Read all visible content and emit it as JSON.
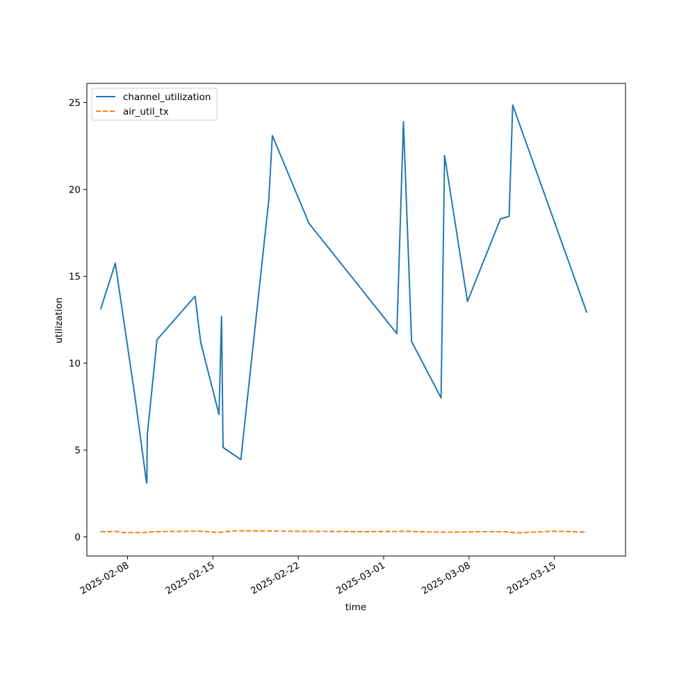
{
  "chart_data": {
    "type": "line",
    "xlabel": "time",
    "ylabel": "utilization",
    "xlim": [
      "2025-02-04T16:00",
      "2025-03-20T20:00"
    ],
    "ylim": [
      -1.1,
      26.1
    ],
    "grid": false,
    "legend_position": "top-left",
    "x_ticks": [
      "2025-02-08",
      "2025-02-15",
      "2025-02-22",
      "2025-03-01",
      "2025-03-08",
      "2025-03-15"
    ],
    "y_ticks": [
      0,
      5,
      10,
      15,
      20,
      25
    ],
    "series": [
      {
        "name": "channel_utilization",
        "color": "#1f77b4",
        "style": "solid",
        "points": [
          [
            "2025-02-05T19:00",
            13.1
          ],
          [
            "2025-02-07T00:00",
            15.75
          ],
          [
            "2025-02-08T15:00",
            8.0
          ],
          [
            "2025-02-09T13:00",
            3.2
          ],
          [
            "2025-02-09T14:00",
            3.1
          ],
          [
            "2025-02-09T15:00",
            5.9
          ],
          [
            "2025-02-10T10:00",
            11.35
          ],
          [
            "2025-02-13T13:00",
            13.85
          ],
          [
            "2025-02-14T00:00",
            11.2
          ],
          [
            "2025-02-15T12:00",
            7.05
          ],
          [
            "2025-02-15T17:00",
            12.7
          ],
          [
            "2025-02-15T20:00",
            5.15
          ],
          [
            "2025-02-17T07:00",
            4.45
          ],
          [
            "2025-02-19T14:00",
            19.4
          ],
          [
            "2025-02-19T21:00",
            23.1
          ],
          [
            "2025-02-22T21:00",
            18.05
          ],
          [
            "2025-03-02T02:00",
            11.7
          ],
          [
            "2025-03-02T15:00",
            23.9
          ],
          [
            "2025-03-03T07:00",
            11.25
          ],
          [
            "2025-03-05T17:00",
            8.0
          ],
          [
            "2025-03-06T00:00",
            21.95
          ],
          [
            "2025-03-07T21:00",
            13.55
          ],
          [
            "2025-03-10T14:00",
            18.3
          ],
          [
            "2025-03-11T07:00",
            18.45
          ],
          [
            "2025-03-11T14:00",
            24.85
          ],
          [
            "2025-03-17T16:00",
            12.9
          ]
        ]
      },
      {
        "name": "air_util_tx",
        "color": "#ff7f0e",
        "style": "dashed",
        "points": [
          [
            "2025-02-05T19:00",
            0.3
          ],
          [
            "2025-02-06T12:00",
            0.3
          ],
          [
            "2025-02-07T00:00",
            0.32
          ],
          [
            "2025-02-07T17:00",
            0.25
          ],
          [
            "2025-02-09T12:00",
            0.25
          ],
          [
            "2025-02-10T00:00",
            0.3
          ],
          [
            "2025-02-14T00:00",
            0.33
          ],
          [
            "2025-02-15T12:00",
            0.25
          ],
          [
            "2025-02-16T00:00",
            0.3
          ],
          [
            "2025-02-17T00:00",
            0.35
          ],
          [
            "2025-02-22T12:00",
            0.32
          ],
          [
            "2025-02-28T00:00",
            0.3
          ],
          [
            "2025-03-03T00:00",
            0.32
          ],
          [
            "2025-03-05T17:00",
            0.27
          ],
          [
            "2025-03-07T00:00",
            0.28
          ],
          [
            "2025-03-09T00:00",
            0.3
          ],
          [
            "2025-03-11T00:00",
            0.3
          ],
          [
            "2025-03-11T20:00",
            0.23
          ],
          [
            "2025-03-15T00:00",
            0.33
          ],
          [
            "2025-03-17T16:00",
            0.27
          ]
        ]
      }
    ]
  }
}
